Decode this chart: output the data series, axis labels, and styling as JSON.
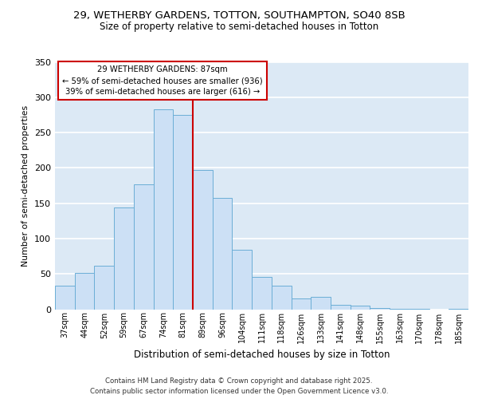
{
  "title_line1": "29, WETHERBY GARDENS, TOTTON, SOUTHAMPTON, SO40 8SB",
  "title_line2": "Size of property relative to semi-detached houses in Totton",
  "xlabel": "Distribution of semi-detached houses by size in Totton",
  "ylabel": "Number of semi-detached properties",
  "categories": [
    "37sqm",
    "44sqm",
    "52sqm",
    "59sqm",
    "67sqm",
    "74sqm",
    "81sqm",
    "89sqm",
    "96sqm",
    "104sqm",
    "111sqm",
    "118sqm",
    "126sqm",
    "133sqm",
    "141sqm",
    "148sqm",
    "155sqm",
    "163sqm",
    "170sqm",
    "178sqm",
    "185sqm"
  ],
  "values": [
    33,
    51,
    61,
    144,
    177,
    283,
    275,
    197,
    158,
    84,
    46,
    33,
    15,
    18,
    6,
    5,
    2,
    1,
    1,
    0,
    1
  ],
  "bar_color": "#cce0f5",
  "bar_edge_color": "#6baed6",
  "vline_x_index": 7,
  "annotation_title": "29 WETHERBY GARDENS: 87sqm",
  "annotation_line1": "← 59% of semi-detached houses are smaller (936)",
  "annotation_line2": "39% of semi-detached houses are larger (616) →",
  "annotation_box_facecolor": "#ffffff",
  "annotation_box_edgecolor": "#cc0000",
  "vline_color": "#cc0000",
  "ylim": [
    0,
    350
  ],
  "yticks": [
    0,
    50,
    100,
    150,
    200,
    250,
    300,
    350
  ],
  "background_color": "#dce9f5",
  "grid_color": "#ffffff",
  "footer_line1": "Contains HM Land Registry data © Crown copyright and database right 2025.",
  "footer_line2": "Contains public sector information licensed under the Open Government Licence v3.0."
}
